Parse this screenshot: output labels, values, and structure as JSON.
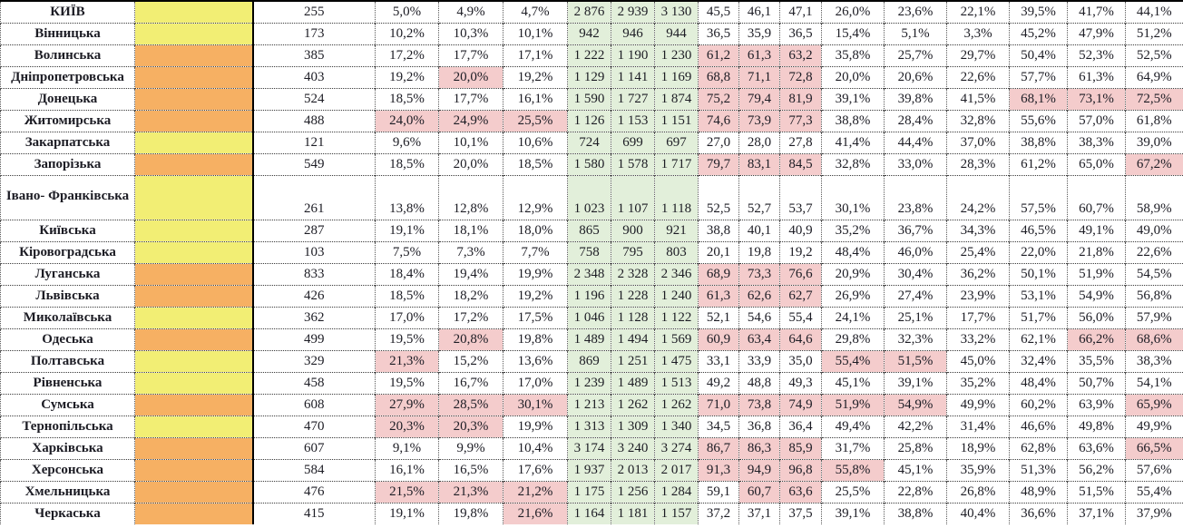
{
  "colors": {
    "yellow": "#F2EE74",
    "orange": "#F6B063",
    "green_bg": "#E2EFDA",
    "green_text": "#538135",
    "highlight_bg": "#F4CCCC",
    "highlight_text": "#C00000"
  },
  "table": {
    "rows": [
      {
        "name": "КИЇВ",
        "color": "yellow",
        "count": "255",
        "p1": [
          "5,0%",
          "4,9%",
          "4,7%"
        ],
        "p1r": [
          0,
          0,
          0
        ],
        "g": [
          "2 876",
          "2 939",
          "3 130"
        ],
        "n": [
          "45,5",
          "46,1",
          "47,1"
        ],
        "nr": [
          0,
          0,
          0
        ],
        "p2": [
          "26,0%",
          "23,6%",
          "22,1%"
        ],
        "p2r": [
          0,
          0,
          0
        ],
        "p3": [
          "39,5%",
          "41,7%",
          "44,1%"
        ],
        "p3r": [
          0,
          0,
          0
        ]
      },
      {
        "name": "Вінницька",
        "color": "yellow",
        "count": "173",
        "p1": [
          "10,2%",
          "10,3%",
          "10,1%"
        ],
        "p1r": [
          0,
          0,
          0
        ],
        "g": [
          "942",
          "946",
          "944"
        ],
        "n": [
          "36,5",
          "35,9",
          "36,5"
        ],
        "nr": [
          0,
          0,
          0
        ],
        "p2": [
          "15,4%",
          "5,1%",
          "3,3%"
        ],
        "p2r": [
          0,
          0,
          0
        ],
        "p3": [
          "45,2%",
          "47,9%",
          "51,2%"
        ],
        "p3r": [
          0,
          0,
          0
        ]
      },
      {
        "name": "Волинська",
        "color": "orange",
        "count": "385",
        "p1": [
          "17,2%",
          "17,7%",
          "17,1%"
        ],
        "p1r": [
          0,
          0,
          0
        ],
        "g": [
          "1 222",
          "1 190",
          "1 230"
        ],
        "n": [
          "61,2",
          "61,3",
          "63,2"
        ],
        "nr": [
          1,
          1,
          1
        ],
        "p2": [
          "35,8%",
          "25,7%",
          "29,7%"
        ],
        "p2r": [
          0,
          0,
          0
        ],
        "p3": [
          "50,4%",
          "52,3%",
          "52,5%"
        ],
        "p3r": [
          0,
          0,
          0
        ]
      },
      {
        "name": "Дніпропетровська",
        "color": "orange",
        "count": "403",
        "p1": [
          "19,2%",
          "20,0%",
          "19,2%"
        ],
        "p1r": [
          0,
          1,
          0
        ],
        "g": [
          "1 129",
          "1 141",
          "1 169"
        ],
        "n": [
          "68,8",
          "71,1",
          "72,8"
        ],
        "nr": [
          1,
          1,
          1
        ],
        "p2": [
          "20,0%",
          "20,6%",
          "22,6%"
        ],
        "p2r": [
          0,
          0,
          0
        ],
        "p3": [
          "57,7%",
          "61,3%",
          "64,9%"
        ],
        "p3r": [
          0,
          0,
          0
        ]
      },
      {
        "name": "Донецька",
        "color": "orange",
        "count": "524",
        "p1": [
          "18,5%",
          "17,7%",
          "16,1%"
        ],
        "p1r": [
          0,
          0,
          0
        ],
        "g": [
          "1 590",
          "1 727",
          "1 874"
        ],
        "n": [
          "75,2",
          "79,4",
          "81,9"
        ],
        "nr": [
          1,
          1,
          1
        ],
        "p2": [
          "39,1%",
          "39,8%",
          "41,5%"
        ],
        "p2r": [
          0,
          0,
          0
        ],
        "p3": [
          "68,1%",
          "73,1%",
          "72,5%"
        ],
        "p3r": [
          1,
          1,
          1
        ]
      },
      {
        "name": "Житомирська",
        "color": "orange",
        "count": "488",
        "p1": [
          "24,0%",
          "24,9%",
          "25,5%"
        ],
        "p1r": [
          1,
          1,
          1
        ],
        "g": [
          "1 126",
          "1 153",
          "1 151"
        ],
        "n": [
          "74,6",
          "73,9",
          "77,3"
        ],
        "nr": [
          1,
          1,
          1
        ],
        "p2": [
          "38,8%",
          "28,4%",
          "32,8%"
        ],
        "p2r": [
          0,
          0,
          0
        ],
        "p3": [
          "55,6%",
          "57,0%",
          "61,8%"
        ],
        "p3r": [
          0,
          0,
          0
        ]
      },
      {
        "name": "Закарпатська",
        "color": "yellow",
        "count": "121",
        "p1": [
          "9,6%",
          "10,1%",
          "10,6%"
        ],
        "p1r": [
          0,
          0,
          0
        ],
        "g": [
          "724",
          "699",
          "697"
        ],
        "n": [
          "27,0",
          "28,0",
          "27,8"
        ],
        "nr": [
          0,
          0,
          0
        ],
        "p2": [
          "41,4%",
          "44,4%",
          "37,0%"
        ],
        "p2r": [
          0,
          0,
          0
        ],
        "p3": [
          "38,8%",
          "38,3%",
          "39,0%"
        ],
        "p3r": [
          0,
          0,
          0
        ]
      },
      {
        "name": "Запорізька",
        "color": "orange",
        "count": "549",
        "p1": [
          "18,5%",
          "20,0%",
          "18,5%"
        ],
        "p1r": [
          0,
          0,
          0
        ],
        "g": [
          "1 580",
          "1 578",
          "1 717"
        ],
        "n": [
          "79,7",
          "83,1",
          "84,5"
        ],
        "nr": [
          1,
          1,
          1
        ],
        "p2": [
          "32,8%",
          "33,0%",
          "28,3%"
        ],
        "p2r": [
          0,
          0,
          0
        ],
        "p3": [
          "61,2%",
          "65,0%",
          "67,2%"
        ],
        "p3r": [
          0,
          0,
          1
        ]
      },
      {
        "name": "Івано-\nФранківська",
        "color": "yellow",
        "count": "261",
        "tall": true,
        "p1": [
          "13,8%",
          "12,8%",
          "12,9%"
        ],
        "p1r": [
          0,
          0,
          0
        ],
        "g": [
          "1 023",
          "1 107",
          "1 118"
        ],
        "n": [
          "52,5",
          "52,7",
          "53,7"
        ],
        "nr": [
          0,
          0,
          0
        ],
        "p2": [
          "30,1%",
          "23,8%",
          "24,2%"
        ],
        "p2r": [
          0,
          0,
          0
        ],
        "p3": [
          "57,5%",
          "60,7%",
          "58,9%"
        ],
        "p3r": [
          0,
          0,
          0
        ]
      },
      {
        "name": "Київська",
        "color": "yellow",
        "count": "287",
        "p1": [
          "19,1%",
          "18,1%",
          "18,0%"
        ],
        "p1r": [
          0,
          0,
          0
        ],
        "g": [
          "865",
          "900",
          "921"
        ],
        "n": [
          "38,8",
          "40,1",
          "40,9"
        ],
        "nr": [
          0,
          0,
          0
        ],
        "p2": [
          "35,2%",
          "36,7%",
          "34,3%"
        ],
        "p2r": [
          0,
          0,
          0
        ],
        "p3": [
          "46,5%",
          "49,1%",
          "49,0%"
        ],
        "p3r": [
          0,
          0,
          0
        ]
      },
      {
        "name": "Кіровоградська",
        "color": "yellow",
        "count": "103",
        "p1": [
          "7,5%",
          "7,3%",
          "7,7%"
        ],
        "p1r": [
          0,
          0,
          0
        ],
        "g": [
          "758",
          "795",
          "803"
        ],
        "n": [
          "20,1",
          "19,8",
          "19,2"
        ],
        "nr": [
          0,
          0,
          0
        ],
        "p2": [
          "48,4%",
          "46,0%",
          "25,4%"
        ],
        "p2r": [
          0,
          0,
          0
        ],
        "p3": [
          "22,0%",
          "21,8%",
          "22,6%"
        ],
        "p3r": [
          0,
          0,
          0
        ]
      },
      {
        "name": "Луганська",
        "color": "orange",
        "count": "833",
        "p1": [
          "18,4%",
          "19,4%",
          "19,9%"
        ],
        "p1r": [
          0,
          0,
          0
        ],
        "g": [
          "2 348",
          "2 328",
          "2 346"
        ],
        "n": [
          "68,9",
          "73,3",
          "76,6"
        ],
        "nr": [
          1,
          1,
          1
        ],
        "p2": [
          "20,9%",
          "30,4%",
          "36,2%"
        ],
        "p2r": [
          0,
          0,
          0
        ],
        "p3": [
          "50,1%",
          "51,9%",
          "54,5%"
        ],
        "p3r": [
          0,
          0,
          0
        ]
      },
      {
        "name": "Львівська",
        "color": "orange",
        "count": "426",
        "p1": [
          "18,5%",
          "18,2%",
          "19,2%"
        ],
        "p1r": [
          0,
          0,
          0
        ],
        "g": [
          "1 196",
          "1 228",
          "1 240"
        ],
        "n": [
          "61,3",
          "62,6",
          "62,7"
        ],
        "nr": [
          1,
          1,
          1
        ],
        "p2": [
          "26,9%",
          "27,4%",
          "23,9%"
        ],
        "p2r": [
          0,
          0,
          0
        ],
        "p3": [
          "53,1%",
          "54,9%",
          "56,8%"
        ],
        "p3r": [
          0,
          0,
          0
        ]
      },
      {
        "name": "Миколаївська",
        "color": "yellow",
        "count": "362",
        "p1": [
          "17,0%",
          "17,2%",
          "17,5%"
        ],
        "p1r": [
          0,
          0,
          0
        ],
        "g": [
          "1 046",
          "1 128",
          "1 122"
        ],
        "n": [
          "52,1",
          "54,6",
          "55,4"
        ],
        "nr": [
          0,
          0,
          0
        ],
        "p2": [
          "24,1%",
          "25,1%",
          "17,7%"
        ],
        "p2r": [
          0,
          0,
          0
        ],
        "p3": [
          "51,7%",
          "56,0%",
          "57,9%"
        ],
        "p3r": [
          0,
          0,
          0
        ]
      },
      {
        "name": "Одеська",
        "color": "orange",
        "count": "499",
        "p1": [
          "19,5%",
          "20,8%",
          "19,8%"
        ],
        "p1r": [
          0,
          1,
          0
        ],
        "g": [
          "1 489",
          "1 494",
          "1 569"
        ],
        "n": [
          "60,9",
          "63,4",
          "64,6"
        ],
        "nr": [
          1,
          1,
          1
        ],
        "p2": [
          "29,8%",
          "32,3%",
          "33,2%"
        ],
        "p2r": [
          0,
          0,
          0
        ],
        "p3": [
          "62,1%",
          "66,2%",
          "68,6%"
        ],
        "p3r": [
          0,
          1,
          1
        ]
      },
      {
        "name": "Полтавська",
        "color": "yellow",
        "count": "329",
        "p1": [
          "21,3%",
          "15,2%",
          "13,6%"
        ],
        "p1r": [
          1,
          0,
          0
        ],
        "g": [
          "869",
          "1 251",
          "1 475"
        ],
        "n": [
          "33,1",
          "33,9",
          "35,0"
        ],
        "nr": [
          0,
          0,
          0
        ],
        "p2": [
          "55,4%",
          "51,5%",
          "45,0%"
        ],
        "p2r": [
          1,
          1,
          0
        ],
        "p3": [
          "32,4%",
          "35,5%",
          "38,3%"
        ],
        "p3r": [
          0,
          0,
          0
        ]
      },
      {
        "name": "Рівненська",
        "color": "yellow",
        "count": "458",
        "p1": [
          "19,5%",
          "16,7%",
          "17,0%"
        ],
        "p1r": [
          0,
          0,
          0
        ],
        "g": [
          "1 239",
          "1 489",
          "1 513"
        ],
        "n": [
          "49,2",
          "48,8",
          "49,3"
        ],
        "nr": [
          0,
          0,
          0
        ],
        "p2": [
          "45,1%",
          "39,1%",
          "35,2%"
        ],
        "p2r": [
          0,
          0,
          0
        ],
        "p3": [
          "48,4%",
          "50,7%",
          "54,1%"
        ],
        "p3r": [
          0,
          0,
          0
        ]
      },
      {
        "name": "Сумська",
        "color": "orange",
        "count": "608",
        "p1": [
          "27,9%",
          "28,5%",
          "30,1%"
        ],
        "p1r": [
          1,
          1,
          1
        ],
        "g": [
          "1 213",
          "1 262",
          "1 262"
        ],
        "n": [
          "71,0",
          "73,8",
          "74,9"
        ],
        "nr": [
          1,
          1,
          1
        ],
        "p2": [
          "51,9%",
          "54,9%",
          "49,9%"
        ],
        "p2r": [
          1,
          1,
          0
        ],
        "p3": [
          "60,2%",
          "63,9%",
          "65,9%"
        ],
        "p3r": [
          0,
          0,
          1
        ]
      },
      {
        "name": "Тернопільська",
        "color": "yellow",
        "count": "470",
        "p1": [
          "20,3%",
          "20,3%",
          "19,9%"
        ],
        "p1r": [
          1,
          1,
          0
        ],
        "g": [
          "1 313",
          "1 309",
          "1 340"
        ],
        "n": [
          "34,5",
          "36,8",
          "36,4"
        ],
        "nr": [
          0,
          0,
          0
        ],
        "p2": [
          "49,4%",
          "42,2%",
          "31,4%"
        ],
        "p2r": [
          0,
          0,
          0
        ],
        "p3": [
          "46,6%",
          "49,8%",
          "49,9%"
        ],
        "p3r": [
          0,
          0,
          0
        ]
      },
      {
        "name": "Харківська",
        "color": "orange",
        "count": "607",
        "p1": [
          "9,1%",
          "9,9%",
          "10,4%"
        ],
        "p1r": [
          0,
          0,
          0
        ],
        "g": [
          "3 174",
          "3 240",
          "3 274"
        ],
        "n": [
          "86,7",
          "86,3",
          "85,9"
        ],
        "nr": [
          1,
          1,
          1
        ],
        "p2": [
          "31,7%",
          "25,8%",
          "18,9%"
        ],
        "p2r": [
          0,
          0,
          0
        ],
        "p3": [
          "62,8%",
          "63,6%",
          "66,5%"
        ],
        "p3r": [
          0,
          0,
          1
        ]
      },
      {
        "name": "Херсонська",
        "color": "orange",
        "count": "584",
        "p1": [
          "16,1%",
          "16,5%",
          "17,6%"
        ],
        "p1r": [
          0,
          0,
          0
        ],
        "g": [
          "1 937",
          "2 013",
          "2 017"
        ],
        "n": [
          "91,3",
          "94,9",
          "96,8"
        ],
        "nr": [
          1,
          1,
          1
        ],
        "p2": [
          "55,8%",
          "45,1%",
          "35,9%"
        ],
        "p2r": [
          1,
          0,
          0
        ],
        "p3": [
          "51,3%",
          "56,2%",
          "57,6%"
        ],
        "p3r": [
          0,
          0,
          0
        ]
      },
      {
        "name": "Хмельницька",
        "color": "orange",
        "count": "476",
        "p1": [
          "21,5%",
          "21,3%",
          "21,2%"
        ],
        "p1r": [
          1,
          1,
          1
        ],
        "g": [
          "1 175",
          "1 256",
          "1 284"
        ],
        "n": [
          "59,1",
          "60,7",
          "63,6"
        ],
        "nr": [
          0,
          1,
          1
        ],
        "p2": [
          "25,5%",
          "22,8%",
          "26,8%"
        ],
        "p2r": [
          0,
          0,
          0
        ],
        "p3": [
          "48,9%",
          "51,5%",
          "55,4%"
        ],
        "p3r": [
          0,
          0,
          0
        ]
      },
      {
        "name": "Черкаська",
        "color": "orange",
        "count": "415",
        "p1": [
          "19,1%",
          "19,8%",
          "21,6%"
        ],
        "p1r": [
          0,
          0,
          1
        ],
        "g": [
          "1 164",
          "1 181",
          "1 157"
        ],
        "n": [
          "37,2",
          "37,1",
          "37,5"
        ],
        "nr": [
          0,
          0,
          0
        ],
        "p2": [
          "39,1%",
          "38,8%",
          "40,4%"
        ],
        "p2r": [
          0,
          0,
          0
        ],
        "p3": [
          "36,6%",
          "37,1%",
          "37,9%"
        ],
        "p3r": [
          0,
          0,
          0
        ]
      }
    ]
  }
}
